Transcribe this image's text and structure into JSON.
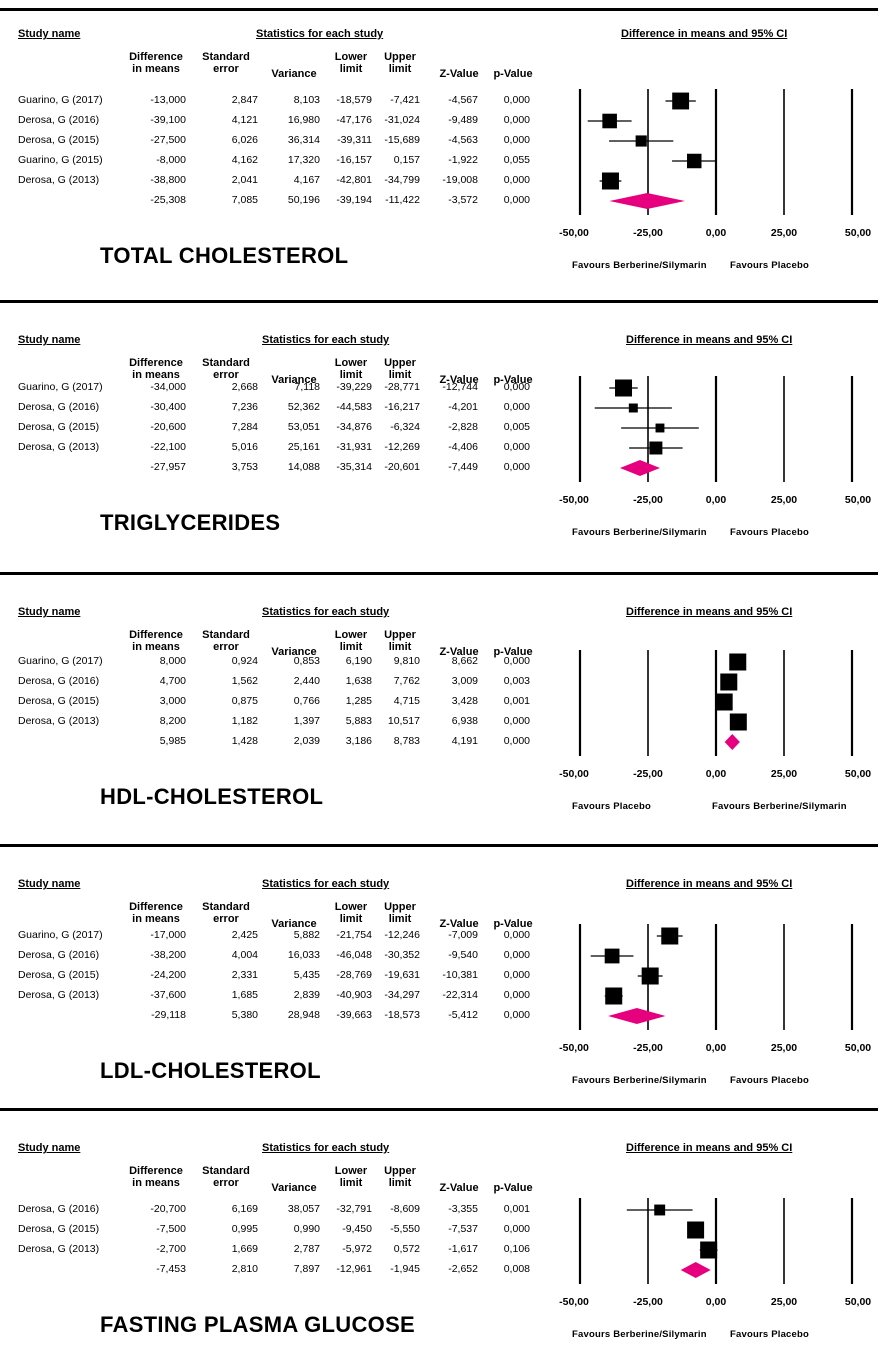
{
  "labels": {
    "study_name": "Study name",
    "stats_header": "Statistics for each study",
    "ci_header": "Difference in means and 95% CI",
    "col_diff_1": "Difference",
    "col_diff_2": "in means",
    "col_se_1": "Standard",
    "col_se_2": "error",
    "col_var": "Variance",
    "col_lower_1": "Lower",
    "col_lower_2": "limit",
    "col_upper_1": "Upper",
    "col_upper_2": "limit",
    "col_z": "Z-Value",
    "col_p": "p-Value"
  },
  "colors": {
    "study_marker": "#000000",
    "summary_diamond": "#e6007e"
  },
  "chart_data": [
    {
      "type": "forest",
      "title": "TOTAL CHOLESTEROL",
      "xlim": [
        -50,
        50
      ],
      "ticks": [
        "-50,00",
        "-25,00",
        "0,00",
        "25,00",
        "50,00"
      ],
      "favours_left": "Favours Berberine/Silymarin",
      "favours_right": "Favours Placebo",
      "rows": [
        {
          "study": "Guarino, G (2017)",
          "diff": "-13,000",
          "se": "2,847",
          "var": "8,103",
          "lower": "-18,579",
          "upper": "-7,421",
          "z": "-4,567",
          "p": "0,000"
        },
        {
          "study": "Derosa, G (2016)",
          "diff": "-39,100",
          "se": "4,121",
          "var": "16,980",
          "lower": "-47,176",
          "upper": "-31,024",
          "z": "-9,489",
          "p": "0,000"
        },
        {
          "study": "Derosa, G (2015)",
          "diff": "-27,500",
          "se": "6,026",
          "var": "36,314",
          "lower": "-39,311",
          "upper": "-15,689",
          "z": "-4,563",
          "p": "0,000"
        },
        {
          "study": "Guarino, G (2015)",
          "diff": "-8,000",
          "se": "4,162",
          "var": "17,320",
          "lower": "-16,157",
          "upper": "0,157",
          "z": "-1,922",
          "p": "0,055"
        },
        {
          "study": "Derosa, G (2013)",
          "diff": "-38,800",
          "se": "2,041",
          "var": "4,167",
          "lower": "-42,801",
          "upper": "-34,799",
          "z": "-19,008",
          "p": "0,000"
        }
      ],
      "summary": {
        "diff": "-25,308",
        "se": "7,085",
        "var": "50,196",
        "lower": "-39,194",
        "upper": "-11,422",
        "z": "-3,572",
        "p": "0,000"
      }
    },
    {
      "type": "forest",
      "title": "TRIGLYCERIDES",
      "xlim": [
        -50,
        50
      ],
      "ticks": [
        "-50,00",
        "-25,00",
        "0,00",
        "25,00",
        "50,00"
      ],
      "favours_left": "Favours Berberine/Silymarin",
      "favours_right": "Favours Placebo",
      "rows": [
        {
          "study": "Guarino, G (2017)",
          "diff": "-34,000",
          "se": "2,668",
          "var": "7,118",
          "lower": "-39,229",
          "upper": "-28,771",
          "z": "-12,744",
          "p": "0,000"
        },
        {
          "study": "Derosa, G (2016)",
          "diff": "-30,400",
          "se": "7,236",
          "var": "52,362",
          "lower": "-44,583",
          "upper": "-16,217",
          "z": "-4,201",
          "p": "0,000"
        },
        {
          "study": "Derosa, G (2015)",
          "diff": "-20,600",
          "se": "7,284",
          "var": "53,051",
          "lower": "-34,876",
          "upper": "-6,324",
          "z": "-2,828",
          "p": "0,005"
        },
        {
          "study": "Derosa, G (2013)",
          "diff": "-22,100",
          "se": "5,016",
          "var": "25,161",
          "lower": "-31,931",
          "upper": "-12,269",
          "z": "-4,406",
          "p": "0,000"
        }
      ],
      "summary": {
        "diff": "-27,957",
        "se": "3,753",
        "var": "14,088",
        "lower": "-35,314",
        "upper": "-20,601",
        "z": "-7,449",
        "p": "0,000"
      }
    },
    {
      "type": "forest",
      "title": "HDL-CHOLESTEROL",
      "xlim": [
        -50,
        50
      ],
      "ticks": [
        "-50,00",
        "-25,00",
        "0,00",
        "25,00",
        "50,00"
      ],
      "favours_left": "Favours Placebo",
      "favours_right": "Favours Berberine/Silymarin",
      "rows": [
        {
          "study": "Guarino, G (2017)",
          "diff": "8,000",
          "se": "0,924",
          "var": "0,853",
          "lower": "6,190",
          "upper": "9,810",
          "z": "8,662",
          "p": "0,000"
        },
        {
          "study": "Derosa, G (2016)",
          "diff": "4,700",
          "se": "1,562",
          "var": "2,440",
          "lower": "1,638",
          "upper": "7,762",
          "z": "3,009",
          "p": "0,003"
        },
        {
          "study": "Derosa, G (2015)",
          "diff": "3,000",
          "se": "0,875",
          "var": "0,766",
          "lower": "1,285",
          "upper": "4,715",
          "z": "3,428",
          "p": "0,001"
        },
        {
          "study": "Derosa, G (2013)",
          "diff": "8,200",
          "se": "1,182",
          "var": "1,397",
          "lower": "5,883",
          "upper": "10,517",
          "z": "6,938",
          "p": "0,000"
        }
      ],
      "summary": {
        "diff": "5,985",
        "se": "1,428",
        "var": "2,039",
        "lower": "3,186",
        "upper": "8,783",
        "z": "4,191",
        "p": "0,000"
      }
    },
    {
      "type": "forest",
      "title": "LDL-CHOLESTEROL",
      "xlim": [
        -50,
        50
      ],
      "ticks": [
        "-50,00",
        "-25,00",
        "0,00",
        "25,00",
        "50,00"
      ],
      "favours_left": "Favours Berberine/Silymarin",
      "favours_right": "Favours Placebo",
      "rows": [
        {
          "study": "Guarino, G (2017)",
          "diff": "-17,000",
          "se": "2,425",
          "var": "5,882",
          "lower": "-21,754",
          "upper": "-12,246",
          "z": "-7,009",
          "p": "0,000"
        },
        {
          "study": "Derosa, G (2016)",
          "diff": "-38,200",
          "se": "4,004",
          "var": "16,033",
          "lower": "-46,048",
          "upper": "-30,352",
          "z": "-9,540",
          "p": "0,000"
        },
        {
          "study": "Derosa, G (2015)",
          "diff": "-24,200",
          "se": "2,331",
          "var": "5,435",
          "lower": "-28,769",
          "upper": "-19,631",
          "z": "-10,381",
          "p": "0,000"
        },
        {
          "study": "Derosa, G (2013)",
          "diff": "-37,600",
          "se": "1,685",
          "var": "2,839",
          "lower": "-40,903",
          "upper": "-34,297",
          "z": "-22,314",
          "p": "0,000"
        }
      ],
      "summary": {
        "diff": "-29,118",
        "se": "5,380",
        "var": "28,948",
        "lower": "-39,663",
        "upper": "-18,573",
        "z": "-5,412",
        "p": "0,000"
      }
    },
    {
      "type": "forest",
      "title": "FASTING PLASMA GLUCOSE",
      "xlim": [
        -50,
        50
      ],
      "ticks": [
        "-50,00",
        "-25,00",
        "0,00",
        "25,00",
        "50,00"
      ],
      "favours_left": "Favours Berberine/Silymarin",
      "favours_right": "Favours Placebo",
      "rows": [
        {
          "study": "Derosa, G (2016)",
          "diff": "-20,700",
          "se": "6,169",
          "var": "38,057",
          "lower": "-32,791",
          "upper": "-8,609",
          "z": "-3,355",
          "p": "0,001"
        },
        {
          "study": "Derosa, G (2015)",
          "diff": "-7,500",
          "se": "0,995",
          "var": "0,990",
          "lower": "-9,450",
          "upper": "-5,550",
          "z": "-7,537",
          "p": "0,000"
        },
        {
          "study": "Derosa, G (2013)",
          "diff": "-2,700",
          "se": "1,669",
          "var": "2,787",
          "lower": "-5,972",
          "upper": "0,572",
          "z": "-1,617",
          "p": "0,106"
        }
      ],
      "summary": {
        "diff": "-7,453",
        "se": "2,810",
        "var": "7,897",
        "lower": "-12,961",
        "upper": "-1,945",
        "z": "-2,652",
        "p": "0,008"
      }
    }
  ]
}
